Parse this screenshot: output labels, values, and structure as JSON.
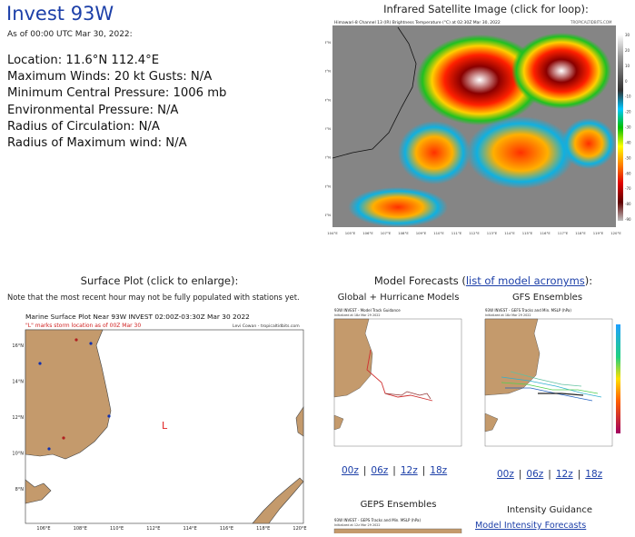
{
  "header": {
    "title": "Invest 93W",
    "as_of": "As of 00:00 UTC Mar 30, 2022:"
  },
  "stats": [
    {
      "text": "Location: 11.6°N 112.4°E"
    },
    {
      "text": "Maximum Winds: 20 kt  Gusts: N/A"
    },
    {
      "text": "Minimum Central Pressure: 1006 mb"
    },
    {
      "text": "Environmental Pressure: N/A"
    },
    {
      "text": "Radius of Circulation: N/A"
    },
    {
      "text": "Radius of Maximum wind: N/A"
    }
  ],
  "satellite": {
    "heading": "Infrared Satellite Image (click for loop):",
    "caption": "Himawari-8 Channel 13 (IR) Brightness Temperature (°C) at 02:30Z Mar 30, 2022",
    "credit": "TROPICALTIDBITS.COM",
    "colorbar_ticks": [
      "30",
      "20",
      "10",
      "0",
      "-10",
      "-20",
      "-30",
      "-40",
      "-50",
      "-60",
      "-70",
      "-80",
      "-90"
    ],
    "lon_ticks": [
      "104°E",
      "105°E",
      "106°E",
      "107°E",
      "108°E",
      "109°E",
      "110°E",
      "111°E",
      "112°E",
      "113°E",
      "114°E",
      "115°E",
      "116°E",
      "117°E",
      "118°E",
      "119°E",
      "120°E"
    ],
    "lat_ticks": [
      "18°N",
      "16°N",
      "14°N",
      "12°N",
      "10°N",
      "8°N",
      "6°N"
    ]
  },
  "surface": {
    "heading": "Surface Plot (click to enlarge):",
    "note": "Note that the most recent hour may not be fully populated with stations yet.",
    "plot_title": "Marine Surface Plot Near 93W INVEST 02:00Z-03:30Z Mar 30 2022",
    "plot_subtitle": "\"L\" marks storm location as of 00Z Mar 30",
    "credit": "Levi Cowan - tropicaltidbits.com",
    "storm_marker": "L",
    "lon_ticks": [
      "106°E",
      "108°E",
      "110°E",
      "112°E",
      "114°E",
      "116°E",
      "118°E",
      "120°E"
    ],
    "lat_ticks": [
      "16°N",
      "14°N",
      "12°N",
      "10°N",
      "8°N"
    ]
  },
  "models": {
    "heading_prefix": "Model Forecasts (",
    "heading_link": "list of model acronyms",
    "heading_suffix": "):",
    "global": {
      "heading": "Global + Hurricane Models",
      "plot_title": "93W INVEST - Model Track Guidance",
      "plot_sub": "Initialized at 18z Mar 29 2022"
    },
    "gefs": {
      "heading": "GFS Ensembles",
      "plot_title": "93W INVEST - GEFS Tracks and Min. MSLP (hPa)",
      "plot_sub": "Initialized at 18z Mar 29 2022"
    },
    "runs_left": [
      "00z",
      "06z",
      "12z",
      "18z"
    ],
    "runs_right": [
      "00z",
      "06z",
      "12z",
      "18z"
    ],
    "separator": "|",
    "geps": {
      "heading": "GEPS Ensembles",
      "plot_title": "93W INVEST - GEPS Tracks and Min. MSLP (hPa)",
      "plot_sub": "Initialized at 12z Mar 29 2022"
    },
    "intensity": {
      "heading": "Intensity Guidance",
      "link": "Model Intensity Forecasts"
    }
  },
  "colors": {
    "title_blue": "#1c3fa8",
    "land": "#c49a6c",
    "sea": "#ffffff",
    "storm_red": "#e02020"
  }
}
